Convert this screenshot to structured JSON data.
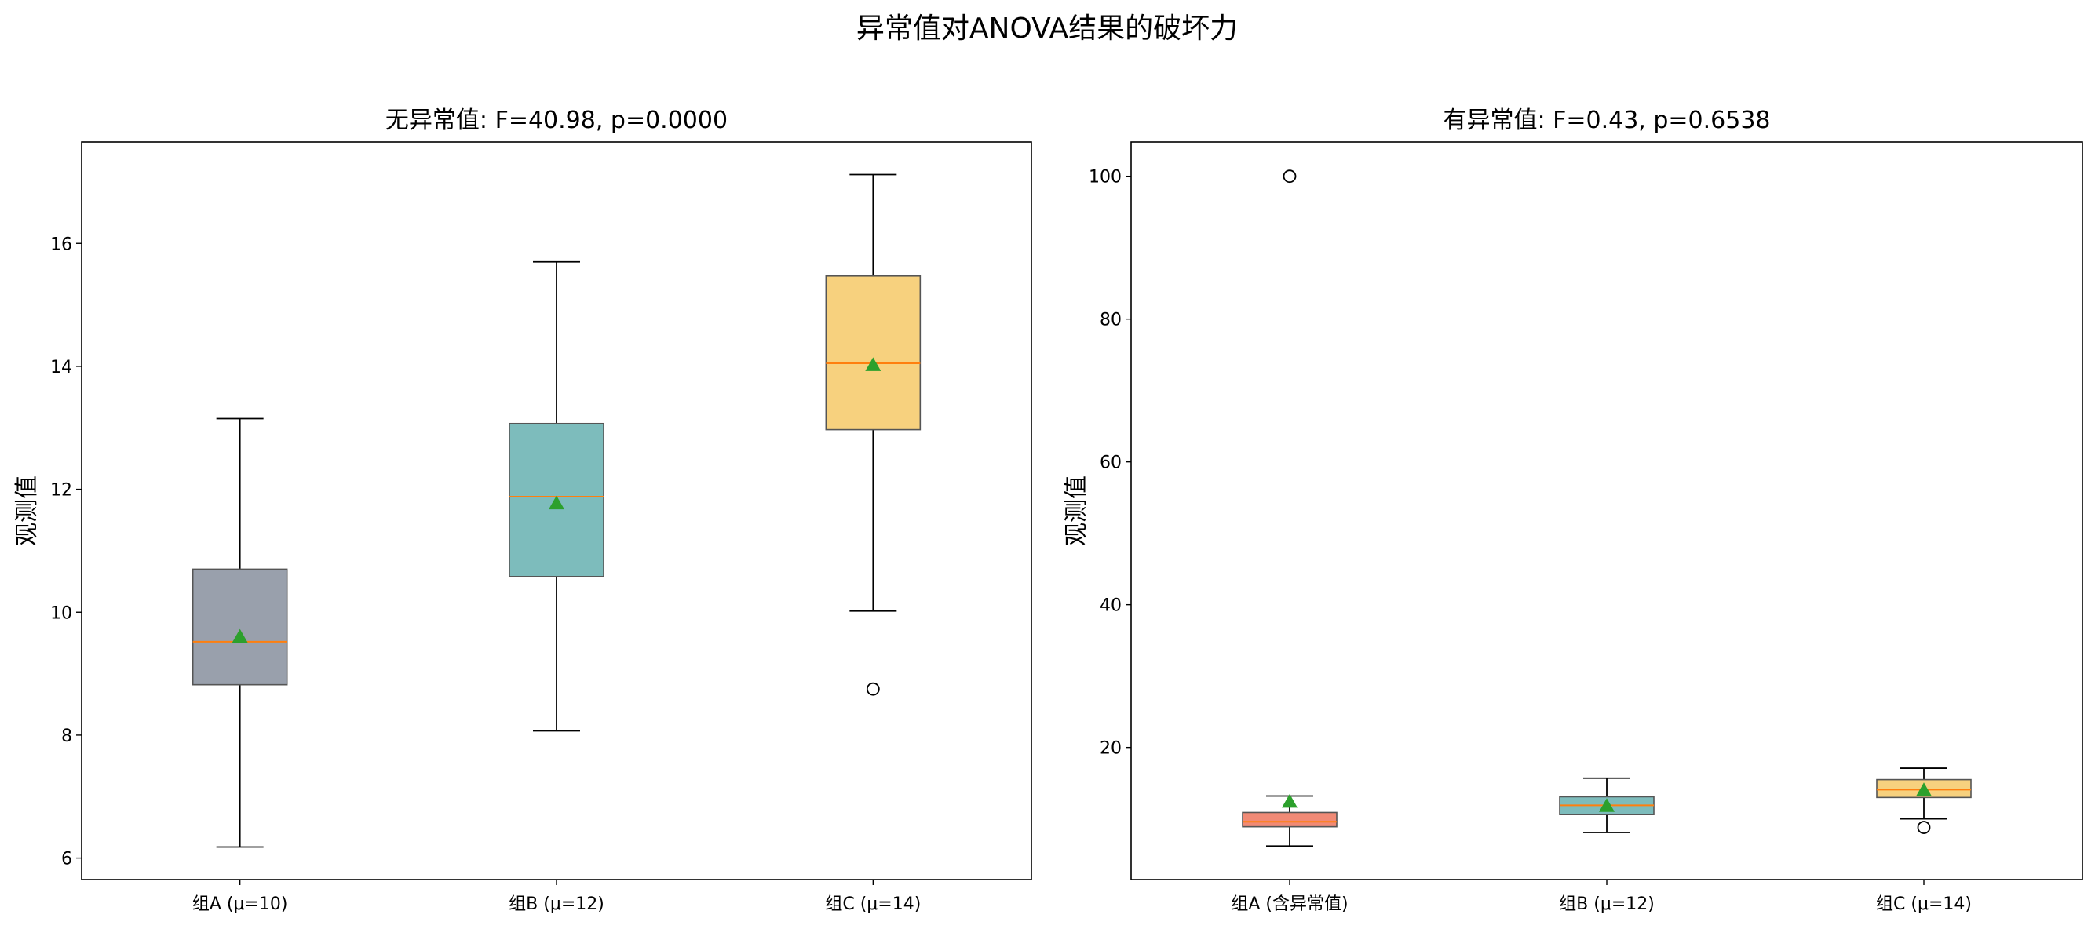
{
  "suptitle": "异常值对ANOVA结果的破坏力",
  "colors": {
    "median": "#ff7f0e",
    "mean_marker": "#2ca02c",
    "whisker": "#000000",
    "box_edge": "#555555"
  },
  "chart_data": [
    {
      "type": "box",
      "title": "无异常值: F=40.98, p=0.0000",
      "xlabel": "",
      "ylabel": "观测值",
      "ylim": [
        5.65,
        17.65
      ],
      "yticks": [
        6,
        8,
        10,
        12,
        14,
        16
      ],
      "grid": false,
      "showmeans": true,
      "categories": [
        "组A (μ=10)",
        "组B (μ=12)",
        "组C (μ=14)"
      ],
      "boxes": [
        {
          "name": "组A (μ=10)",
          "color": "#8e96a3",
          "whislo": 6.18,
          "q1": 8.82,
          "med": 9.52,
          "q3": 10.7,
          "whishi": 13.15,
          "mean": 9.6,
          "fliers": []
        },
        {
          "name": "组B (μ=12)",
          "color": "#6fb5b5",
          "whislo": 8.07,
          "q1": 10.58,
          "med": 11.88,
          "q3": 13.07,
          "whishi": 15.7,
          "mean": 11.77,
          "fliers": []
        },
        {
          "name": "组C (μ=14)",
          "color": "#f6cc70",
          "whislo": 10.02,
          "q1": 12.97,
          "med": 14.05,
          "q3": 15.47,
          "whishi": 17.12,
          "mean": 14.02,
          "fliers": [
            8.75
          ]
        }
      ]
    },
    {
      "type": "box",
      "title": "有异常值: F=0.43, p=0.6538",
      "xlabel": "",
      "ylabel": "观测值",
      "ylim": [
        1.5,
        104.8
      ],
      "yticks": [
        20,
        40,
        60,
        80,
        100
      ],
      "grid": false,
      "showmeans": true,
      "categories": [
        "组A (含异常值)",
        "组B (μ=12)",
        "组C (μ=14)"
      ],
      "boxes": [
        {
          "name": "组A (含异常值)",
          "color": "#ee7d67",
          "whislo": 6.2,
          "q1": 8.9,
          "med": 9.6,
          "q3": 10.9,
          "whishi": 13.2,
          "mean": 12.4,
          "fliers": [
            100
          ]
        },
        {
          "name": "组B (μ=12)",
          "color": "#6fb5b5",
          "whislo": 8.1,
          "q1": 10.6,
          "med": 11.9,
          "q3": 13.1,
          "whishi": 15.7,
          "mean": 11.8,
          "fliers": []
        },
        {
          "name": "组C (μ=14)",
          "color": "#f6cc70",
          "whislo": 10.0,
          "q1": 13.0,
          "med": 14.1,
          "q3": 15.5,
          "whishi": 17.1,
          "mean": 14.0,
          "fliers": [
            8.8
          ]
        }
      ]
    }
  ]
}
